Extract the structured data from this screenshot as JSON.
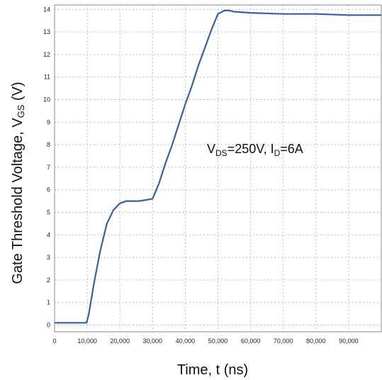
{
  "chart_data": {
    "type": "line",
    "xlabel": "Time, t (ns)",
    "ylabel": {
      "main": "Gate Threshold Voltage, V",
      "sub": "GS",
      "unit": " (V)"
    },
    "annotation": {
      "v": "V",
      "v_sub": "DS",
      "v_val": "=250V, ",
      "i": "I",
      "i_sub": "D",
      "i_val": "=6A"
    },
    "xlim": [
      0,
      100000
    ],
    "ylim": [
      -0.3,
      14.2
    ],
    "x_ticks": [
      0,
      10000,
      20000,
      30000,
      40000,
      50000,
      60000,
      70000,
      80000,
      90000
    ],
    "x_tick_labels": [
      "0",
      "10,000",
      "20,000",
      "30,000",
      "40,000",
      "50,000",
      "60,000",
      "70,000",
      "80,000",
      "90,000"
    ],
    "y_ticks": [
      0,
      1,
      2,
      3,
      4,
      5,
      6,
      7,
      8,
      9,
      10,
      11,
      12,
      13,
      14
    ],
    "y_tick_labels": [
      "0",
      "1",
      "2",
      "3",
      "4",
      "5",
      "6",
      "7",
      "8",
      "9",
      "10",
      "11",
      "12",
      "13",
      "14"
    ],
    "grid": true,
    "series": [
      {
        "color": "#3a5fa0",
        "x": [
          0,
          9800,
          10500,
          12000,
          14000,
          16000,
          18000,
          20000,
          22000,
          24000,
          26000,
          28000,
          30000,
          32000,
          34000,
          36000,
          38000,
          40000,
          42000,
          44000,
          46000,
          48000,
          50000,
          52000,
          53500,
          55000,
          60000,
          70000,
          80000,
          90000,
          100000
        ],
        "y": [
          0.1,
          0.1,
          0.5,
          1.8,
          3.3,
          4.5,
          5.1,
          5.4,
          5.5,
          5.5,
          5.5,
          5.55,
          5.6,
          6.3,
          7.2,
          8.0,
          8.9,
          9.8,
          10.6,
          11.5,
          12.3,
          13.1,
          13.8,
          13.95,
          13.95,
          13.9,
          13.85,
          13.8,
          13.8,
          13.75,
          13.75
        ]
      }
    ]
  }
}
